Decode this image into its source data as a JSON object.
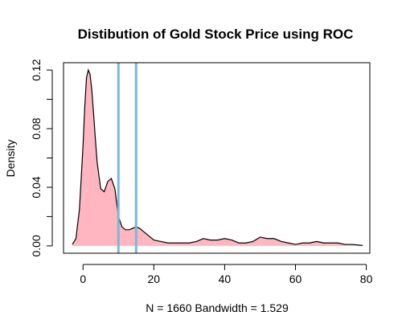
{
  "chart_data": {
    "type": "area",
    "title": "Distibution of Gold Stock Price using ROC",
    "xlabel": "N = 1660   Bandwidth = 1.529",
    "ylabel": "Density",
    "xlim": [
      -5.5,
      81
    ],
    "ylim": [
      -0.005,
      0.125
    ],
    "xticks": [
      0,
      20,
      40,
      60,
      80
    ],
    "xtick_labels": [
      "0",
      "20",
      "40",
      "60",
      "80"
    ],
    "yticks": [
      0.0,
      0.04,
      0.08,
      0.12
    ],
    "ytick_labels": [
      "0.00",
      "0.04",
      "0.08",
      "0.12"
    ],
    "density_curve": {
      "x": [
        -3,
        -2,
        -1,
        0,
        0.5,
        1,
        1.5,
        2,
        2.5,
        3,
        3.5,
        4,
        5,
        6,
        7,
        8,
        9,
        10,
        11,
        12,
        13,
        14,
        15,
        16,
        17,
        18,
        19,
        20,
        22,
        24,
        26,
        28,
        30,
        32,
        34,
        36,
        38,
        40,
        42,
        44,
        46,
        48,
        50,
        52,
        54,
        56,
        58,
        60,
        62,
        64,
        66,
        68,
        70,
        72,
        74,
        76,
        78,
        79
      ],
      "y": [
        0.001,
        0.005,
        0.025,
        0.068,
        0.095,
        0.115,
        0.12,
        0.117,
        0.106,
        0.09,
        0.073,
        0.057,
        0.039,
        0.037,
        0.044,
        0.046,
        0.039,
        0.02,
        0.013,
        0.011,
        0.011,
        0.012,
        0.013,
        0.012,
        0.01,
        0.008,
        0.006,
        0.004,
        0.003,
        0.002,
        0.002,
        0.002,
        0.002,
        0.003,
        0.005,
        0.004,
        0.004,
        0.005,
        0.004,
        0.002,
        0.002,
        0.003,
        0.006,
        0.005,
        0.005,
        0.003,
        0.002,
        0.001,
        0.002,
        0.002,
        0.003,
        0.002,
        0.002,
        0.002,
        0.001,
        0.001,
        0.0005,
        0.0003
      ],
      "fill_color": "#FFB6C1",
      "line_color": "#000000"
    },
    "vlines": [
      {
        "x": 10,
        "color": "#74BBD9"
      },
      {
        "x": 15,
        "color": "#74BBD9"
      }
    ],
    "grid": false,
    "legend": "none"
  }
}
